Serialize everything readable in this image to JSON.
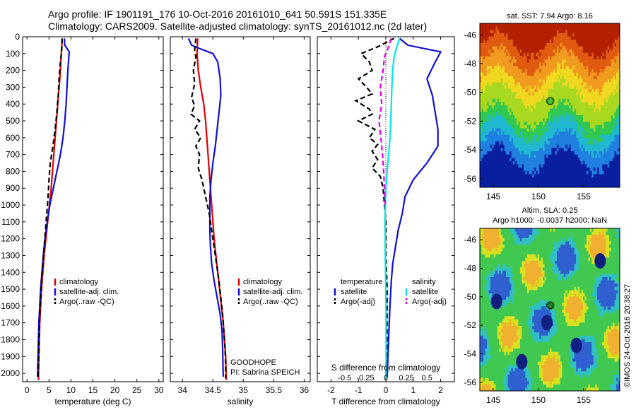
{
  "header": {
    "title_line1": "Argo profile: IF 1901191_176 10-Oct-2016 20161010_641 50.591S 151.335E",
    "title_line2": "Climatology: CARS2009. Satellite-adjusted climatology: synTS_20161012.nc (2d later)"
  },
  "stamp": "©IMOS 24-Oct-2016 20:38:27",
  "colors": {
    "climatology": "#e00000",
    "satellite": "#1010d0",
    "argo": "#000000",
    "cyan": "#00e5e5",
    "magenta": "#e000e0"
  },
  "chart_data": [
    {
      "type": "line",
      "panel": "temperature",
      "xlabel": "temperature (deg C)",
      "xlim": [
        -1,
        31
      ],
      "xticks": [
        0,
        5,
        10,
        15,
        20,
        25,
        30
      ],
      "ylim": [
        0,
        2050
      ],
      "yticks": [
        0,
        100,
        200,
        300,
        400,
        500,
        600,
        700,
        800,
        900,
        1000,
        1100,
        1200,
        1300,
        1400,
        1500,
        1600,
        1700,
        1800,
        1900,
        2000
      ],
      "legend": [
        "climatology",
        "satellite-adj. clim.",
        "Argo(..raw -QC)"
      ],
      "series": [
        {
          "name": "climatology",
          "style": "solid",
          "color": "climatology",
          "points": [
            [
              8.0,
              10
            ],
            [
              7.8,
              100
            ],
            [
              7.6,
              200
            ],
            [
              7.3,
              300
            ],
            [
              7.0,
              400
            ],
            [
              6.7,
              500
            ],
            [
              6.4,
              600
            ],
            [
              6.1,
              700
            ],
            [
              5.8,
              800
            ],
            [
              5.5,
              900
            ],
            [
              5.1,
              1000
            ],
            [
              4.7,
              1100
            ],
            [
              4.3,
              1200
            ],
            [
              3.9,
              1300
            ],
            [
              3.6,
              1400
            ],
            [
              3.3,
              1500
            ],
            [
              3.1,
              1600
            ],
            [
              2.9,
              1700
            ],
            [
              2.8,
              1800
            ],
            [
              2.7,
              1900
            ],
            [
              2.6,
              2040
            ]
          ]
        },
        {
          "name": "satellite-adj. clim.",
          "style": "solid",
          "color": "satellite",
          "points": [
            [
              8.5,
              10
            ],
            [
              8.6,
              50
            ],
            [
              9.6,
              90
            ],
            [
              9.3,
              200
            ],
            [
              9.1,
              300
            ],
            [
              8.9,
              400
            ],
            [
              8.6,
              500
            ],
            [
              8.2,
              600
            ],
            [
              7.6,
              700
            ],
            [
              6.8,
              800
            ],
            [
              6.0,
              900
            ],
            [
              5.2,
              1000
            ],
            [
              4.6,
              1100
            ],
            [
              4.1,
              1200
            ],
            [
              3.7,
              1300
            ],
            [
              3.4,
              1400
            ],
            [
              3.1,
              1500
            ],
            [
              2.9,
              1600
            ],
            [
              2.7,
              1700
            ],
            [
              2.6,
              1800
            ],
            [
              2.5,
              1900
            ],
            [
              2.4,
              2020
            ]
          ]
        },
        {
          "name": "Argo(..raw -QC)",
          "style": "dashed",
          "color": "argo",
          "points": [
            [
              8.0,
              10
            ],
            [
              7.9,
              80
            ],
            [
              7.6,
              150
            ],
            [
              7.3,
              250
            ],
            [
              7.1,
              350
            ],
            [
              6.8,
              450
            ],
            [
              6.4,
              550
            ],
            [
              5.9,
              650
            ],
            [
              5.3,
              750
            ],
            [
              5.0,
              850
            ],
            [
              4.8,
              950
            ],
            [
              4.5,
              1050
            ],
            [
              4.2,
              1150
            ],
            [
              3.9,
              1250
            ],
            [
              3.6,
              1350
            ],
            [
              3.3,
              1450
            ],
            [
              3.1,
              1550
            ],
            [
              2.9,
              1650
            ],
            [
              2.8,
              1750
            ],
            [
              2.7,
              1850
            ],
            [
              2.6,
              1950
            ],
            [
              2.5,
              2030
            ]
          ]
        }
      ]
    },
    {
      "type": "line",
      "panel": "salinity",
      "xlabel": "salinity",
      "xlim": [
        33.8,
        36.1
      ],
      "xticks": [
        34,
        34.5,
        35,
        35.5,
        36
      ],
      "ylim": [
        0,
        2050
      ],
      "legend": [
        "climatology",
        "satellite-adj. clim.",
        "Argo(..raw -QC)"
      ],
      "annotations": [
        "GOODHOPE",
        "PI: Sabrina SPEICH"
      ],
      "series": [
        {
          "name": "climatology",
          "style": "solid",
          "color": "climatology",
          "points": [
            [
              34.25,
              10
            ],
            [
              34.24,
              100
            ],
            [
              34.26,
              200
            ],
            [
              34.3,
              300
            ],
            [
              34.35,
              400
            ],
            [
              34.38,
              500
            ],
            [
              34.4,
              600
            ],
            [
              34.42,
              700
            ],
            [
              34.44,
              800
            ],
            [
              34.46,
              900
            ],
            [
              34.48,
              1000
            ],
            [
              34.5,
              1100
            ],
            [
              34.52,
              1200
            ],
            [
              34.55,
              1300
            ],
            [
              34.58,
              1400
            ],
            [
              34.61,
              1500
            ],
            [
              34.64,
              1600
            ],
            [
              34.67,
              1700
            ],
            [
              34.69,
              1800
            ],
            [
              34.71,
              1900
            ],
            [
              34.72,
              2040
            ]
          ]
        },
        {
          "name": "satellite-adj. clim.",
          "style": "solid",
          "color": "satellite",
          "points": [
            [
              34.1,
              10
            ],
            [
              34.15,
              50
            ],
            [
              34.28,
              70
            ],
            [
              34.5,
              100
            ],
            [
              34.58,
              150
            ],
            [
              34.62,
              250
            ],
            [
              34.63,
              350
            ],
            [
              34.6,
              450
            ],
            [
              34.57,
              550
            ],
            [
              34.54,
              650
            ],
            [
              34.5,
              750
            ],
            [
              34.47,
              850
            ],
            [
              34.45,
              950
            ],
            [
              34.45,
              1050
            ],
            [
              34.45,
              1150
            ],
            [
              34.46,
              1250
            ],
            [
              34.48,
              1350
            ],
            [
              34.52,
              1450
            ],
            [
              34.57,
              1550
            ],
            [
              34.62,
              1650
            ],
            [
              34.65,
              1750
            ],
            [
              34.66,
              1850
            ],
            [
              34.67,
              2020
            ]
          ]
        },
        {
          "name": "Argo(..raw -QC)",
          "style": "dashed",
          "color": "argo",
          "points": [
            [
              34.22,
              10
            ],
            [
              34.2,
              80
            ],
            [
              34.22,
              120
            ],
            [
              34.18,
              200
            ],
            [
              34.2,
              280
            ],
            [
              34.15,
              360
            ],
            [
              34.2,
              410
            ],
            [
              34.14,
              460
            ],
            [
              34.28,
              500
            ],
            [
              34.2,
              550
            ],
            [
              34.3,
              600
            ],
            [
              34.22,
              650
            ],
            [
              34.28,
              700
            ],
            [
              34.26,
              780
            ],
            [
              34.32,
              850
            ],
            [
              34.38,
              950
            ],
            [
              34.44,
              1050
            ],
            [
              34.48,
              1150
            ],
            [
              34.52,
              1250
            ],
            [
              34.56,
              1350
            ],
            [
              34.6,
              1450
            ],
            [
              34.63,
              1550
            ],
            [
              34.66,
              1650
            ],
            [
              34.68,
              1750
            ],
            [
              34.7,
              1850
            ],
            [
              34.71,
              1950
            ],
            [
              34.71,
              2030
            ]
          ]
        }
      ]
    },
    {
      "type": "line",
      "panel": "difference",
      "xlabel": "T difference from climatology",
      "xlabel_top": "S difference from climatology",
      "xlim": [
        -2.5,
        2.5
      ],
      "xticks": [
        -2,
        -1,
        0,
        1,
        2
      ],
      "top_ticks": [
        "-0.5",
        "-0.25",
        "0",
        "0.25",
        "0.5"
      ],
      "ylim": [
        0,
        2050
      ],
      "legend_left_title": "temperature",
      "legend_right_title": "salinity",
      "legend": [
        "satellite",
        "Argo(-adj)",
        "satellite",
        "Argo(-adj)"
      ],
      "series": [
        {
          "name": "temperature satellite",
          "style": "solid",
          "color": "satellite",
          "points": [
            [
              0.5,
              10
            ],
            [
              0.8,
              50
            ],
            [
              2.0,
              90
            ],
            [
              1.8,
              150
            ],
            [
              1.5,
              250
            ],
            [
              1.7,
              350
            ],
            [
              1.8,
              450
            ],
            [
              1.9,
              550
            ],
            [
              1.9,
              650
            ],
            [
              1.5,
              750
            ],
            [
              1.0,
              850
            ],
            [
              0.7,
              950
            ],
            [
              0.6,
              1050
            ],
            [
              0.45,
              1150
            ],
            [
              0.35,
              1250
            ],
            [
              0.25,
              1350
            ],
            [
              0.2,
              1450
            ],
            [
              0.15,
              1600
            ],
            [
              0.1,
              1800
            ],
            [
              0.05,
              2020
            ]
          ]
        },
        {
          "name": "temperature Argo(-adj)",
          "style": "dashed",
          "color": "argo",
          "points": [
            [
              0.3,
              10
            ],
            [
              -0.3,
              60
            ],
            [
              -0.9,
              100
            ],
            [
              -0.6,
              150
            ],
            [
              -0.5,
              200
            ],
            [
              -1.0,
              250
            ],
            [
              -0.7,
              300
            ],
            [
              -0.5,
              340
            ],
            [
              -1.1,
              380
            ],
            [
              -0.6,
              430
            ],
            [
              -0.5,
              460
            ],
            [
              -1.0,
              500
            ],
            [
              -0.4,
              550
            ],
            [
              -0.6,
              600
            ],
            [
              -0.3,
              640
            ],
            [
              -0.5,
              680
            ],
            [
              -0.3,
              730
            ],
            [
              -0.5,
              780
            ],
            [
              -0.2,
              830
            ],
            [
              -0.1,
              900
            ],
            [
              -0.05,
              1000
            ],
            [
              0.0,
              1100
            ],
            [
              0.0,
              1300
            ],
            [
              0.05,
              1500
            ],
            [
              0.05,
              1800
            ],
            [
              0.0,
              2030
            ]
          ]
        },
        {
          "name": "salinity satellite",
          "style": "solid",
          "color": "cyan",
          "points": [
            [
              0.5,
              10
            ],
            [
              0.4,
              60
            ],
            [
              0.3,
              120
            ],
            [
              0.25,
              200
            ],
            [
              0.22,
              300
            ],
            [
              0.2,
              400
            ],
            [
              0.18,
              500
            ],
            [
              0.15,
              600
            ],
            [
              0.1,
              700
            ],
            [
              0.05,
              800
            ],
            [
              0.0,
              900
            ],
            [
              -0.02,
              1000
            ],
            [
              -0.03,
              1100
            ],
            [
              -0.02,
              1300
            ],
            [
              0.0,
              1500
            ],
            [
              0.01,
              1700
            ],
            [
              0.01,
              1900
            ],
            [
              0.0,
              2030
            ]
          ]
        },
        {
          "name": "salinity Argo(-adj)",
          "style": "dashed",
          "color": "magenta",
          "points": [
            [
              0.2,
              10
            ],
            [
              0.1,
              60
            ],
            [
              -0.05,
              120
            ],
            [
              -0.1,
              200
            ],
            [
              -0.2,
              300
            ],
            [
              -0.15,
              400
            ],
            [
              -0.25,
              500
            ],
            [
              -0.18,
              600
            ],
            [
              -0.12,
              700
            ],
            [
              -0.08,
              800
            ],
            [
              -0.05,
              900
            ],
            [
              -0.02,
              1000
            ]
          ]
        }
      ]
    },
    {
      "type": "heatmap",
      "panel": "sst_map",
      "title": "sat. SST: 7.94 Argo: 8.16",
      "xticks": [
        145,
        150,
        155
      ],
      "yticks": [
        -46,
        -48,
        -50,
        -52,
        -54,
        -56
      ],
      "marker": [
        151.3,
        -50.6
      ]
    },
    {
      "type": "heatmap",
      "panel": "sla_map",
      "title_line1": "Altim. SLA: 0.25",
      "title_line2": "Argo h1000: -0.0037 h2000: NaN",
      "xticks": [
        145,
        150,
        155
      ],
      "yticks": [
        -46,
        -48,
        -50,
        -52,
        -54,
        -56
      ],
      "marker": [
        151.3,
        -50.6
      ]
    }
  ]
}
